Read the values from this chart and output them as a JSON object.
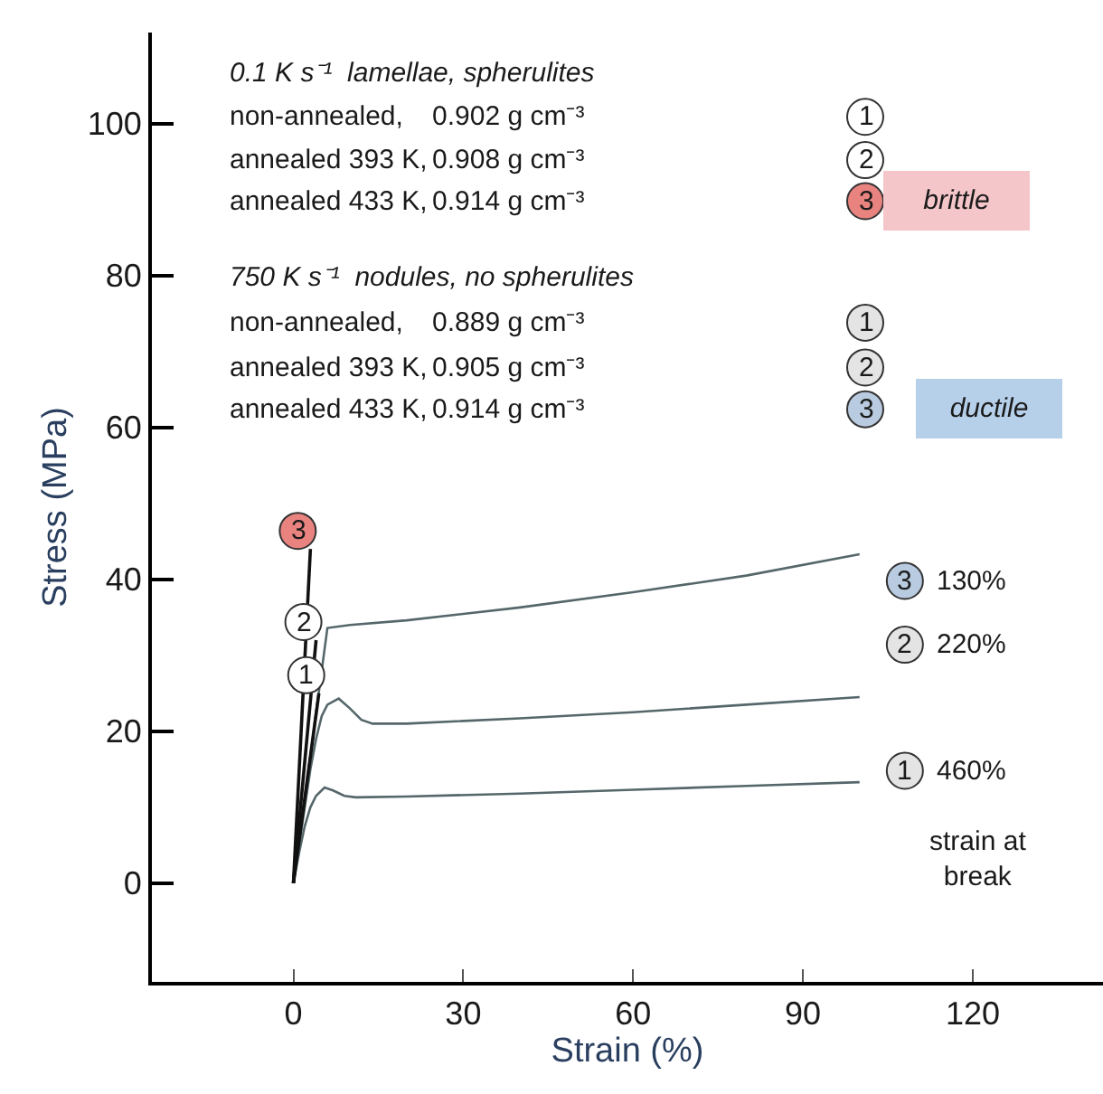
{
  "chart_data": {
    "type": "line",
    "xlabel": "Strain (%)",
    "ylabel": "Stress (MPa)",
    "xlim": [
      -25,
      143
    ],
    "ylim": [
      -13,
      112
    ],
    "xticks": [
      0,
      30,
      60,
      90,
      120
    ],
    "yticks": [
      0,
      20,
      40,
      60,
      80,
      100
    ],
    "marker": "none",
    "line_style": "solid",
    "series": [
      {
        "color": "#55676a",
        "x": [
          0,
          1,
          2,
          3,
          4,
          5.5,
          7,
          9,
          11,
          20,
          40,
          60,
          80,
          100
        ],
        "values": [
          0,
          4,
          7.5,
          10,
          11.5,
          12.6,
          12.2,
          11.5,
          11.3,
          11.4,
          11.8,
          12.3,
          12.8,
          13.3
        ]
      },
      {
        "color": "#55676a",
        "x": [
          0,
          1,
          2,
          3,
          4,
          5,
          6,
          8,
          10,
          12,
          14,
          20,
          40,
          60,
          80,
          100
        ],
        "values": [
          0,
          5,
          10,
          15,
          19,
          22,
          23.5,
          24.3,
          23,
          21.5,
          21,
          21,
          21.7,
          22.5,
          23.5,
          24.5
        ]
      },
      {
        "color": "#55676a",
        "x": [
          0,
          6,
          10,
          20,
          40,
          60,
          80,
          100
        ],
        "values": [
          0,
          33.6,
          34,
          34.6,
          36.3,
          38.3,
          40.5,
          43.3
        ]
      },
      {
        "color": "#111111",
        "x": [
          0,
          4.5
        ],
        "values": [
          0,
          25
        ]
      },
      {
        "color": "#111111",
        "x": [
          0,
          4
        ],
        "values": [
          0,
          32
        ]
      },
      {
        "color": "#111111",
        "x": [
          0,
          3
        ],
        "values": [
          0,
          44
        ]
      }
    ],
    "annotations": [
      "0.1 K s⁻¹  lamellae, spherulites",
      "non-annealed,",
      "0.902 g cm⁻³",
      "1",
      "annealed 393 K,",
      "0.908 g cm⁻³",
      "2",
      "annealed 433 K,",
      "0.914 g cm⁻³",
      "3",
      "brittle",
      "750 K s⁻¹  nodules, no spherulites",
      "non-annealed,",
      "0.889 g cm⁻³",
      "1",
      "annealed 393 K,",
      "0.905 g cm⁻³",
      "2",
      "annealed 433 K,",
      "0.914 g cm⁻³",
      "3",
      "ductile",
      {
        "text": "3",
        "x": 3,
        "y": 44
      },
      {
        "text": "2",
        "x": 4,
        "y": 32
      },
      {
        "text": "1",
        "x": 4.5,
        "y": 25
      },
      "3",
      "130%",
      "2",
      "220%",
      "1",
      "460%",
      "strain at break"
    ]
  }
}
